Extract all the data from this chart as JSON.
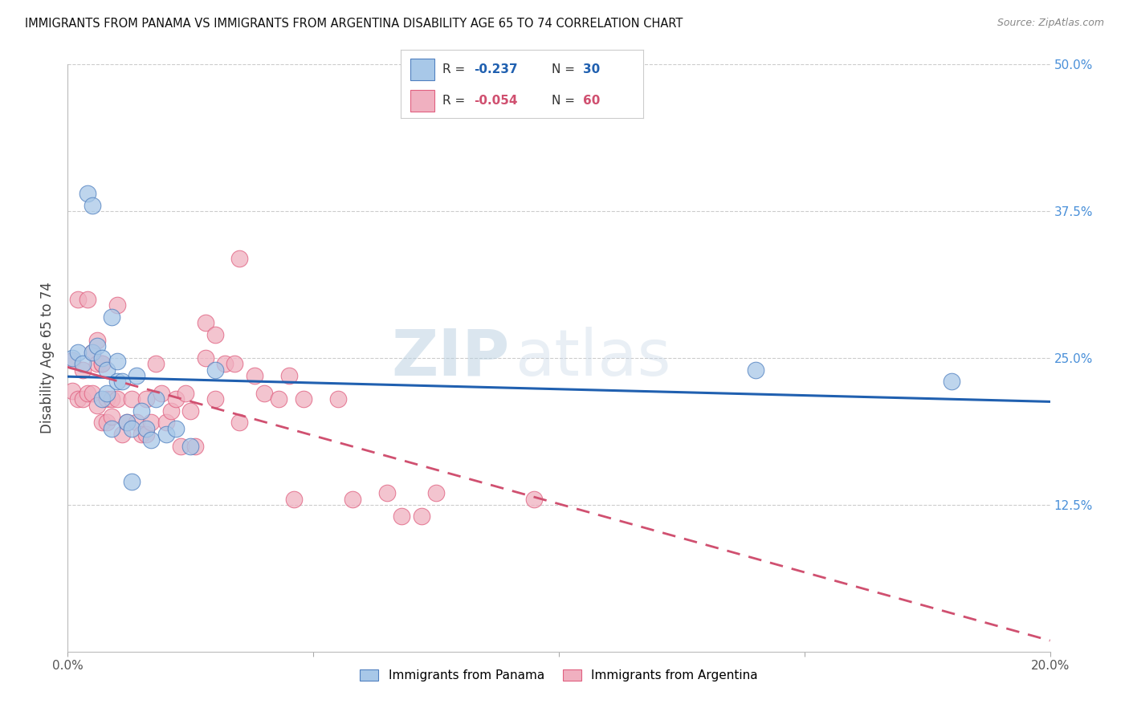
{
  "title": "IMMIGRANTS FROM PANAMA VS IMMIGRANTS FROM ARGENTINA DISABILITY AGE 65 TO 74 CORRELATION CHART",
  "source": "Source: ZipAtlas.com",
  "xlabel_panama": "Immigrants from Panama",
  "xlabel_argentina": "Immigrants from Argentina",
  "ylabel": "Disability Age 65 to 74",
  "xlim": [
    0.0,
    0.2
  ],
  "ylim": [
    0.0,
    0.5
  ],
  "xticks": [
    0.0,
    0.05,
    0.1,
    0.15,
    0.2
  ],
  "xticklabels": [
    "0.0%",
    "",
    "",
    "",
    "20.0%"
  ],
  "yticks": [
    0.0,
    0.125,
    0.25,
    0.375,
    0.5
  ],
  "yticklabels_right": [
    "",
    "12.5%",
    "25.0%",
    "37.5%",
    "50.0%"
  ],
  "color_blue": "#a8c8e8",
  "color_pink": "#f0b0c0",
  "color_blue_edge": "#5080c0",
  "color_pink_edge": "#e06080",
  "color_blue_line": "#2060b0",
  "color_pink_line": "#d05070",
  "color_right_labels": "#4a90d9",
  "color_grid": "#cccccc",
  "watermark_zip": "ZIP",
  "watermark_atlas": "atlas",
  "panama_x": [
    0.001,
    0.002,
    0.003,
    0.004,
    0.005,
    0.005,
    0.006,
    0.007,
    0.007,
    0.008,
    0.008,
    0.009,
    0.009,
    0.01,
    0.01,
    0.011,
    0.012,
    0.013,
    0.013,
    0.014,
    0.015,
    0.016,
    0.017,
    0.018,
    0.02,
    0.022,
    0.025,
    0.03,
    0.14,
    0.18
  ],
  "panama_y": [
    0.25,
    0.255,
    0.245,
    0.39,
    0.38,
    0.255,
    0.26,
    0.25,
    0.215,
    0.24,
    0.22,
    0.19,
    0.285,
    0.247,
    0.23,
    0.23,
    0.195,
    0.19,
    0.145,
    0.235,
    0.205,
    0.19,
    0.18,
    0.215,
    0.185,
    0.19,
    0.175,
    0.24,
    0.24,
    0.23
  ],
  "argentina_x": [
    0.001,
    0.001,
    0.002,
    0.002,
    0.003,
    0.003,
    0.004,
    0.004,
    0.005,
    0.005,
    0.006,
    0.006,
    0.006,
    0.007,
    0.007,
    0.007,
    0.008,
    0.008,
    0.009,
    0.009,
    0.01,
    0.01,
    0.011,
    0.012,
    0.013,
    0.014,
    0.015,
    0.016,
    0.016,
    0.017,
    0.018,
    0.019,
    0.02,
    0.021,
    0.022,
    0.023,
    0.024,
    0.025,
    0.026,
    0.028,
    0.028,
    0.03,
    0.03,
    0.032,
    0.034,
    0.035,
    0.035,
    0.038,
    0.04,
    0.043,
    0.045,
    0.046,
    0.048,
    0.055,
    0.058,
    0.065,
    0.068,
    0.072,
    0.075,
    0.095
  ],
  "argentina_y": [
    0.248,
    0.222,
    0.3,
    0.215,
    0.24,
    0.215,
    0.3,
    0.22,
    0.255,
    0.22,
    0.21,
    0.245,
    0.265,
    0.245,
    0.245,
    0.195,
    0.215,
    0.195,
    0.215,
    0.2,
    0.295,
    0.215,
    0.185,
    0.195,
    0.215,
    0.195,
    0.185,
    0.185,
    0.215,
    0.195,
    0.245,
    0.22,
    0.195,
    0.205,
    0.215,
    0.175,
    0.22,
    0.205,
    0.175,
    0.28,
    0.25,
    0.27,
    0.215,
    0.245,
    0.245,
    0.335,
    0.195,
    0.235,
    0.22,
    0.215,
    0.235,
    0.13,
    0.215,
    0.215,
    0.13,
    0.135,
    0.115,
    0.115,
    0.135,
    0.13
  ]
}
